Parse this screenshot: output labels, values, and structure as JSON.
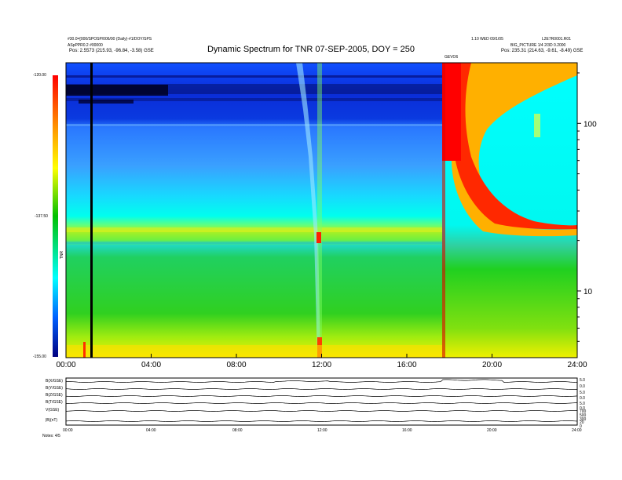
{
  "header": {
    "title": "Dynamic Spectrum for TNR 07-SEP-2005, DOY = 250",
    "left_line1": "#30.0=[000/SPOSP/006/00 (Daily)-#1/DOY/SPS",
    "left_line2": "ASpPPR0.2 #00000",
    "left_pos": "Pos: 2.5573 (215.93, -96.84, -3.58) GSE",
    "right_line1": "1.10 WED 09/1/05",
    "right_line2": "L2E7R0001.R01",
    "right_line3": "BIG_PICTURE 1/4 2/3D 0.2000",
    "right_pos": "Pos: 235.31 (214.63, -9.61, -8.49) GSE",
    "event_label": "GEVO6"
  },
  "colorbar": {
    "labels": [
      "-120.00",
      "-137.50",
      "-155.00"
    ],
    "side_label": "TNR"
  },
  "chart_data": {
    "type": "heatmap",
    "title": "Dynamic Spectrum for TNR 07-SEP-2005, DOY = 250",
    "x_tick_labels": [
      "00:00",
      "04:00",
      "08:00",
      "12:00",
      "16:00",
      "20:00",
      "24:00"
    ],
    "x_ticks_hours": [
      0,
      4,
      8,
      12,
      16,
      20,
      24
    ],
    "xlim_hours": [
      0,
      24
    ],
    "y_scale": "log",
    "y_tick_labels": [
      "100",
      "10"
    ],
    "y_ticks": [
      100,
      10
    ],
    "ylim_khz": [
      4,
      230
    ],
    "y_unit": "kHz",
    "colorbar_range": [
      -155,
      -120
    ],
    "features": [
      {
        "name": "vertical data gap",
        "hour": 1.2
      },
      {
        "name": "type III burst",
        "hour": 11.8
      },
      {
        "name": "type II / IP shock emission",
        "start_hour": 17.7,
        "end_hour": 24
      }
    ]
  },
  "lower_panel": {
    "row_labels": [
      "B(X/GSE)",
      "B(Y/GSE)",
      "B(Z/GSE)",
      "B(T/GSE)",
      "V(GSE)",
      "|B|(nT)"
    ],
    "right_labels": [
      "5.0",
      "0.0",
      "5.0",
      "0.0",
      "5.0",
      "0.0",
      "700",
      "500",
      "300",
      "20",
      "0"
    ],
    "x_tick_labels": [
      "00:00",
      "04:00",
      "08:00",
      "12:00",
      "16:00",
      "20:00",
      "24:00"
    ],
    "footnote": "Notes: 4/5"
  }
}
